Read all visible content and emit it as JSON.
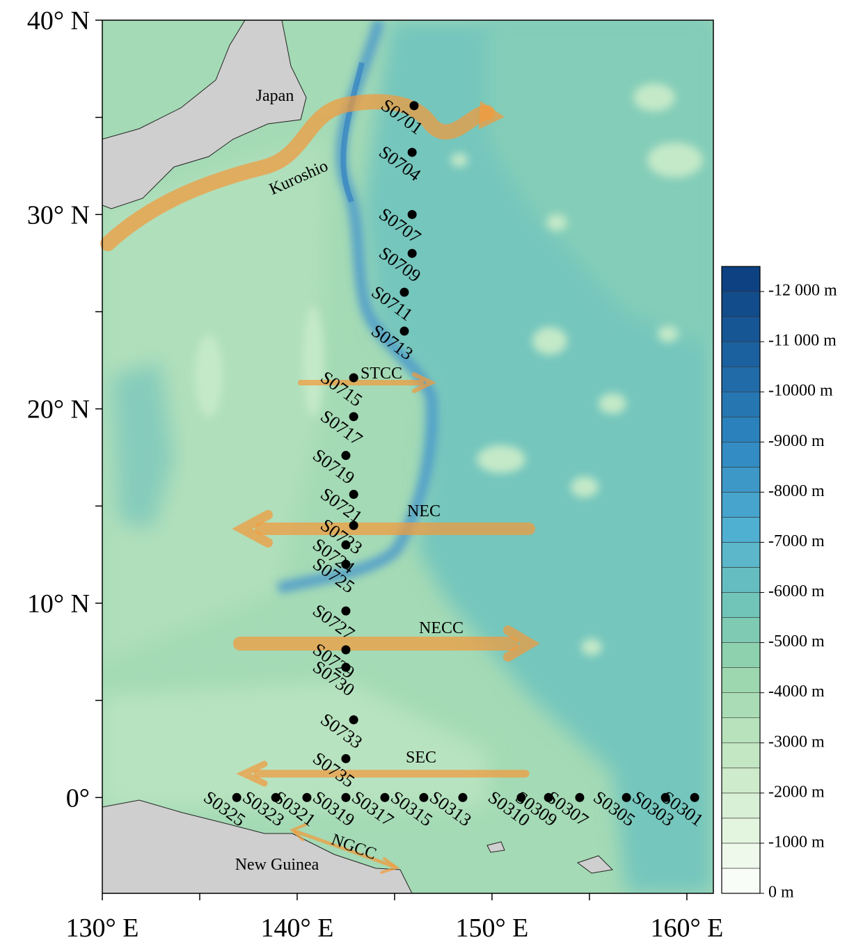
{
  "map": {
    "xlim": [
      130,
      161.36
    ],
    "ylim": [
      -4.93,
      40
    ],
    "xticks": [
      {
        "value": 130,
        "label": "130° E"
      },
      {
        "value": 140,
        "label": "140° E"
      },
      {
        "value": 150,
        "label": "150° E"
      },
      {
        "value": 160,
        "label": "160° E"
      }
    ],
    "xminor": [
      135,
      145,
      155
    ],
    "yticks": [
      {
        "value": 40,
        "label": "40° N"
      },
      {
        "value": 30,
        "label": "30° N"
      },
      {
        "value": 20,
        "label": "20° N"
      },
      {
        "value": 10,
        "label": "10° N"
      },
      {
        "value": 0,
        "label": "0°"
      }
    ],
    "yminor": [
      35,
      25,
      15,
      5
    ],
    "places": [
      "Japan",
      "New Guinea"
    ],
    "currents": [
      "Kuroshio",
      "STCC",
      "NEC",
      "NECC",
      "SEC",
      "NGCC"
    ],
    "stations": [
      {
        "name": "S0701",
        "lon": 146.0,
        "lat": 35.6
      },
      {
        "name": "S0704",
        "lon": 145.9,
        "lat": 33.2
      },
      {
        "name": "S0707",
        "lon": 145.9,
        "lat": 30.0
      },
      {
        "name": "S0709",
        "lon": 145.9,
        "lat": 28.0
      },
      {
        "name": "S0711",
        "lon": 145.5,
        "lat": 26.0
      },
      {
        "name": "S0713",
        "lon": 145.5,
        "lat": 24.0
      },
      {
        "name": "S0715",
        "lon": 142.9,
        "lat": 21.6
      },
      {
        "name": "S0717",
        "lon": 142.9,
        "lat": 19.6
      },
      {
        "name": "S0719",
        "lon": 142.5,
        "lat": 17.6
      },
      {
        "name": "S0721",
        "lon": 142.9,
        "lat": 15.6
      },
      {
        "name": "S0723",
        "lon": 142.9,
        "lat": 14.0
      },
      {
        "name": "S0724",
        "lon": 142.5,
        "lat": 13.0
      },
      {
        "name": "S0725",
        "lon": 142.5,
        "lat": 12.0
      },
      {
        "name": "S0727",
        "lon": 142.5,
        "lat": 9.6
      },
      {
        "name": "S0729",
        "lon": 142.5,
        "lat": 7.6
      },
      {
        "name": "S0730",
        "lon": 142.5,
        "lat": 6.7
      },
      {
        "name": "S0733",
        "lon": 142.9,
        "lat": 4.0
      },
      {
        "name": "S0735",
        "lon": 142.5,
        "lat": 2.0
      },
      {
        "name": "S0301",
        "lon": 160.4,
        "lat": 0
      },
      {
        "name": "S0303",
        "lon": 158.9,
        "lat": 0
      },
      {
        "name": "S0305",
        "lon": 156.9,
        "lat": 0
      },
      {
        "name": "S0307",
        "lon": 154.5,
        "lat": 0
      },
      {
        "name": "S0309",
        "lon": 152.9,
        "lat": 0
      },
      {
        "name": "S0310",
        "lon": 151.5,
        "lat": 0
      },
      {
        "name": "S0313",
        "lon": 148.5,
        "lat": 0
      },
      {
        "name": "S0315",
        "lon": 146.5,
        "lat": 0
      },
      {
        "name": "S0317",
        "lon": 144.5,
        "lat": 0
      },
      {
        "name": "S0319",
        "lon": 142.5,
        "lat": 0
      },
      {
        "name": "S0321",
        "lon": 140.5,
        "lat": 0
      },
      {
        "name": "S0323",
        "lon": 138.9,
        "lat": 0
      },
      {
        "name": "S0325",
        "lon": 136.9,
        "lat": 0
      }
    ]
  },
  "colorbar": {
    "range": [
      -12500,
      0
    ],
    "ticks": [
      {
        "value": -12000,
        "label": "-12 000 m"
      },
      {
        "value": -11000,
        "label": "-11 000 m"
      },
      {
        "value": -10000,
        "label": "-10000 m"
      },
      {
        "value": -9000,
        "label": "-9000 m"
      },
      {
        "value": -8000,
        "label": "-8000 m"
      },
      {
        "value": -7000,
        "label": "-7000 m"
      },
      {
        "value": -6000,
        "label": "-6000 m"
      },
      {
        "value": -5000,
        "label": "-5000 m"
      },
      {
        "value": -4000,
        "label": "-4000 m"
      },
      {
        "value": -3000,
        "label": "-3000 m"
      },
      {
        "value": -2000,
        "label": "-2000 m"
      },
      {
        "value": -1000,
        "label": "-1000 m"
      },
      {
        "value": 0,
        "label": "0 m"
      }
    ]
  }
}
